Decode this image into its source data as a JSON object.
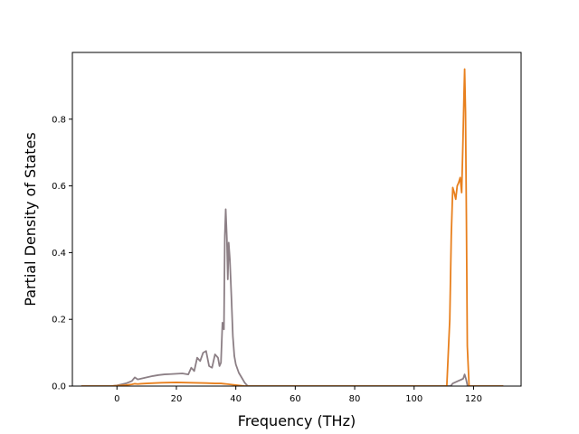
{
  "chart_data": {
    "type": "line",
    "title": "",
    "xlabel": "Frequency (THz)",
    "ylabel": "Partial Density of States",
    "xlim": [
      -15,
      136
    ],
    "ylim": [
      0,
      1.0
    ],
    "xticks": [
      0,
      20,
      40,
      60,
      80,
      100,
      120
    ],
    "yticks": [
      0.0,
      0.2,
      0.4,
      0.6,
      0.8
    ],
    "ytick_labels": [
      "0.0",
      "0.2",
      "0.4",
      "0.6",
      "0.8"
    ],
    "grid": false,
    "legend": "none",
    "series": [
      {
        "color": "#8c7f85",
        "x": [
          -12,
          -2,
          0,
          3,
          5,
          6,
          7,
          8,
          10,
          12,
          14,
          16,
          18,
          20,
          22,
          24,
          25,
          26,
          27,
          28,
          29,
          30,
          31,
          32,
          33,
          34,
          34.5,
          35,
          35.5,
          36,
          36.3,
          36.6,
          37,
          37.3,
          37.6,
          38,
          38.5,
          39,
          39.5,
          40,
          41,
          42,
          43,
          44,
          60,
          80,
          100,
          111,
          112.3,
          113,
          114,
          115,
          116,
          116.5,
          117,
          117.5,
          118,
          120,
          130
        ],
        "y": [
          0,
          0,
          0.002,
          0.008,
          0.015,
          0.026,
          0.02,
          0.022,
          0.026,
          0.03,
          0.033,
          0.035,
          0.036,
          0.037,
          0.038,
          0.035,
          0.055,
          0.045,
          0.085,
          0.075,
          0.1,
          0.105,
          0.06,
          0.055,
          0.095,
          0.085,
          0.06,
          0.07,
          0.19,
          0.17,
          0.45,
          0.53,
          0.44,
          0.32,
          0.43,
          0.38,
          0.27,
          0.15,
          0.09,
          0.065,
          0.04,
          0.025,
          0.01,
          0,
          0,
          0,
          0,
          0,
          0,
          0.008,
          0.012,
          0.016,
          0.02,
          0.022,
          0.035,
          0.02,
          0,
          0,
          0
        ]
      },
      {
        "color": "#e8801e",
        "x": [
          -12,
          -2,
          0,
          3,
          5,
          6,
          7,
          8,
          10,
          15,
          20,
          25,
          30,
          33,
          35,
          36,
          37,
          38,
          40,
          42,
          43,
          44,
          60,
          80,
          100,
          111,
          112,
          112.5,
          113,
          113.5,
          114,
          114.5,
          115,
          115.5,
          116,
          116.4,
          116.8,
          117,
          117.3,
          117.6,
          117.9,
          118.5,
          120,
          130
        ],
        "y": [
          0,
          0,
          0.001,
          0.003,
          0.005,
          0.007,
          0.006,
          0.007,
          0.008,
          0.01,
          0.011,
          0.01,
          0.009,
          0.008,
          0.008,
          0.007,
          0.006,
          0.005,
          0.003,
          0.001,
          0,
          0,
          0,
          0,
          0,
          0,
          0.2,
          0.45,
          0.595,
          0.58,
          0.56,
          0.6,
          0.61,
          0.625,
          0.58,
          0.72,
          0.88,
          0.95,
          0.82,
          0.5,
          0.12,
          0,
          0,
          0
        ]
      }
    ]
  }
}
